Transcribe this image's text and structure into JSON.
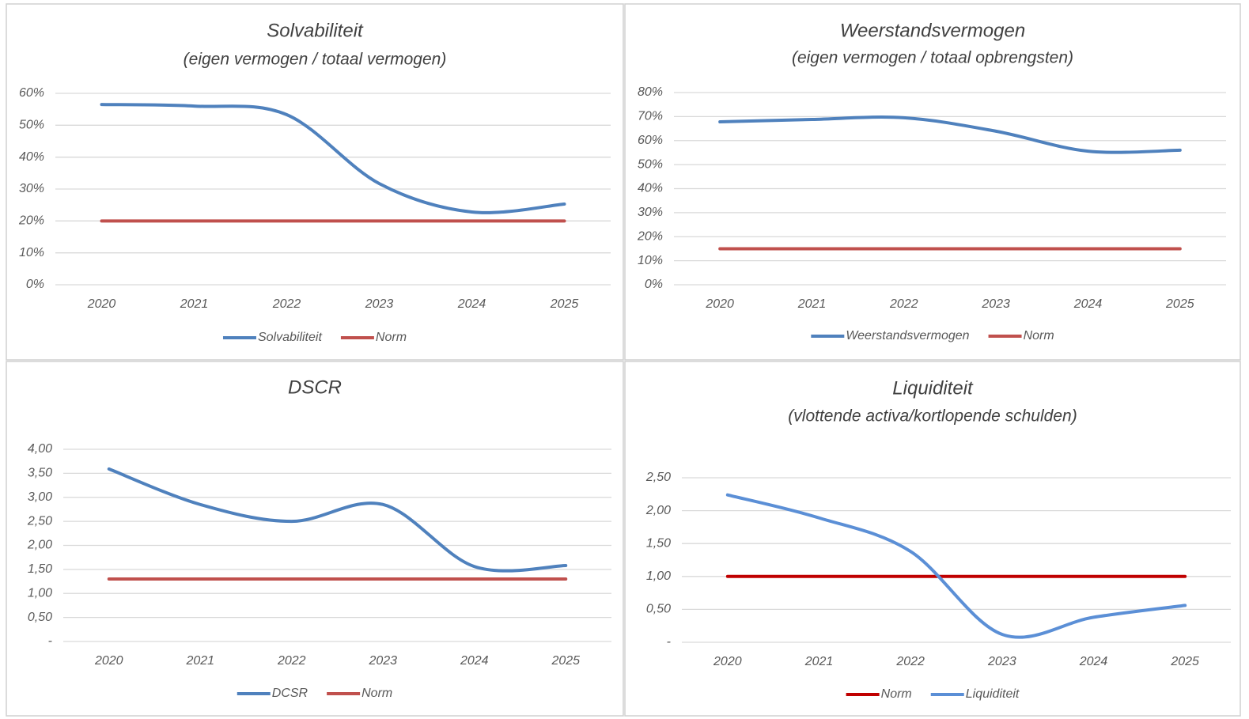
{
  "chart_data": [
    {
      "type": "line",
      "title": "Solvabiliteit",
      "subtitle": "(eigen vermogen / totaal vermogen)",
      "categories": [
        "2020",
        "2021",
        "2022",
        "2023",
        "2024",
        "2025"
      ],
      "series": [
        {
          "name": "Solvabiliteit",
          "color": "#4f81bd",
          "values": [
            56.5,
            56,
            53.3,
            31.7,
            22.8,
            25.3
          ]
        },
        {
          "name": "Norm",
          "color": "#c0504d",
          "values": [
            20,
            20,
            20,
            20,
            20,
            20
          ]
        }
      ],
      "ylim": [
        0,
        60
      ],
      "yticks": [
        {
          "value": 0,
          "label": "0%"
        },
        {
          "value": 10,
          "label": "10%"
        },
        {
          "value": 20,
          "label": "20%"
        },
        {
          "value": 30,
          "label": "30%"
        },
        {
          "value": 40,
          "label": "40%"
        },
        {
          "value": 50,
          "label": "50%"
        },
        {
          "value": 60,
          "label": "60%"
        }
      ],
      "grid": true,
      "legend": "bottom"
    },
    {
      "type": "line",
      "title": "Weerstandsvermogen",
      "subtitle": "(eigen vermogen / totaal opbrengsten)",
      "categories": [
        "2020",
        "2021",
        "2022",
        "2023",
        "2024",
        "2025"
      ],
      "series": [
        {
          "name": "Weerstandsvermogen",
          "color": "#4f81bd",
          "values": [
            67.8,
            68.8,
            69.5,
            63.9,
            55.6,
            56
          ]
        },
        {
          "name": "Norm",
          "color": "#c0504d",
          "values": [
            15,
            15,
            15,
            15,
            15,
            15
          ]
        }
      ],
      "ylim": [
        0,
        80
      ],
      "yticks": [
        {
          "value": 0,
          "label": "0%"
        },
        {
          "value": 10,
          "label": "10%"
        },
        {
          "value": 20,
          "label": "20%"
        },
        {
          "value": 30,
          "label": "30%"
        },
        {
          "value": 40,
          "label": "40%"
        },
        {
          "value": 50,
          "label": "50%"
        },
        {
          "value": 60,
          "label": "60%"
        },
        {
          "value": 70,
          "label": "70%"
        },
        {
          "value": 80,
          "label": "80%"
        }
      ],
      "grid": true,
      "legend": "bottom"
    },
    {
      "type": "line",
      "title": "DSCR",
      "categories": [
        "2020",
        "2021",
        "2022",
        "2023",
        "2024",
        "2025"
      ],
      "series": [
        {
          "name": "DCSR",
          "color": "#4f81bd",
          "values": [
            3.59,
            2.85,
            2.5,
            2.85,
            1.56,
            1.58
          ]
        },
        {
          "name": "Norm",
          "color": "#c0504d",
          "values": [
            1.3,
            1.3,
            1.3,
            1.3,
            1.3,
            1.3
          ]
        }
      ],
      "ylim": [
        0,
        4
      ],
      "yticks": [
        {
          "value": 0,
          "label": "-"
        },
        {
          "value": 0.5,
          "label": "0,50"
        },
        {
          "value": 1,
          "label": "1,00"
        },
        {
          "value": 1.5,
          "label": "1,50"
        },
        {
          "value": 2,
          "label": "2,00"
        },
        {
          "value": 2.5,
          "label": "2,50"
        },
        {
          "value": 3,
          "label": "3,00"
        },
        {
          "value": 3.5,
          "label": "3,50"
        },
        {
          "value": 4,
          "label": "4,00"
        }
      ],
      "grid": true,
      "legend": "bottom"
    },
    {
      "type": "line",
      "title": "Liquiditeit",
      "subtitle": "(vlottende activa/kortlopende schulden)",
      "categories": [
        "2020",
        "2021",
        "2022",
        "2023",
        "2024",
        "2025"
      ],
      "series": [
        {
          "name": "Norm",
          "color": "#c00000",
          "values": [
            1,
            1,
            1,
            1,
            1,
            1
          ]
        },
        {
          "name": "Liquiditeit",
          "color": "#5b8fd6",
          "values": [
            2.24,
            1.89,
            1.38,
            0.12,
            0.38,
            0.56
          ]
        }
      ],
      "ylim": [
        0,
        2.5
      ],
      "yticks": [
        {
          "value": 0,
          "label": "-"
        },
        {
          "value": 0.5,
          "label": "0,50"
        },
        {
          "value": 1,
          "label": "1,00"
        },
        {
          "value": 1.5,
          "label": "1,50"
        },
        {
          "value": 2,
          "label": "2,00"
        },
        {
          "value": 2.5,
          "label": "2,50"
        }
      ],
      "grid": true,
      "legend": "bottom"
    }
  ]
}
